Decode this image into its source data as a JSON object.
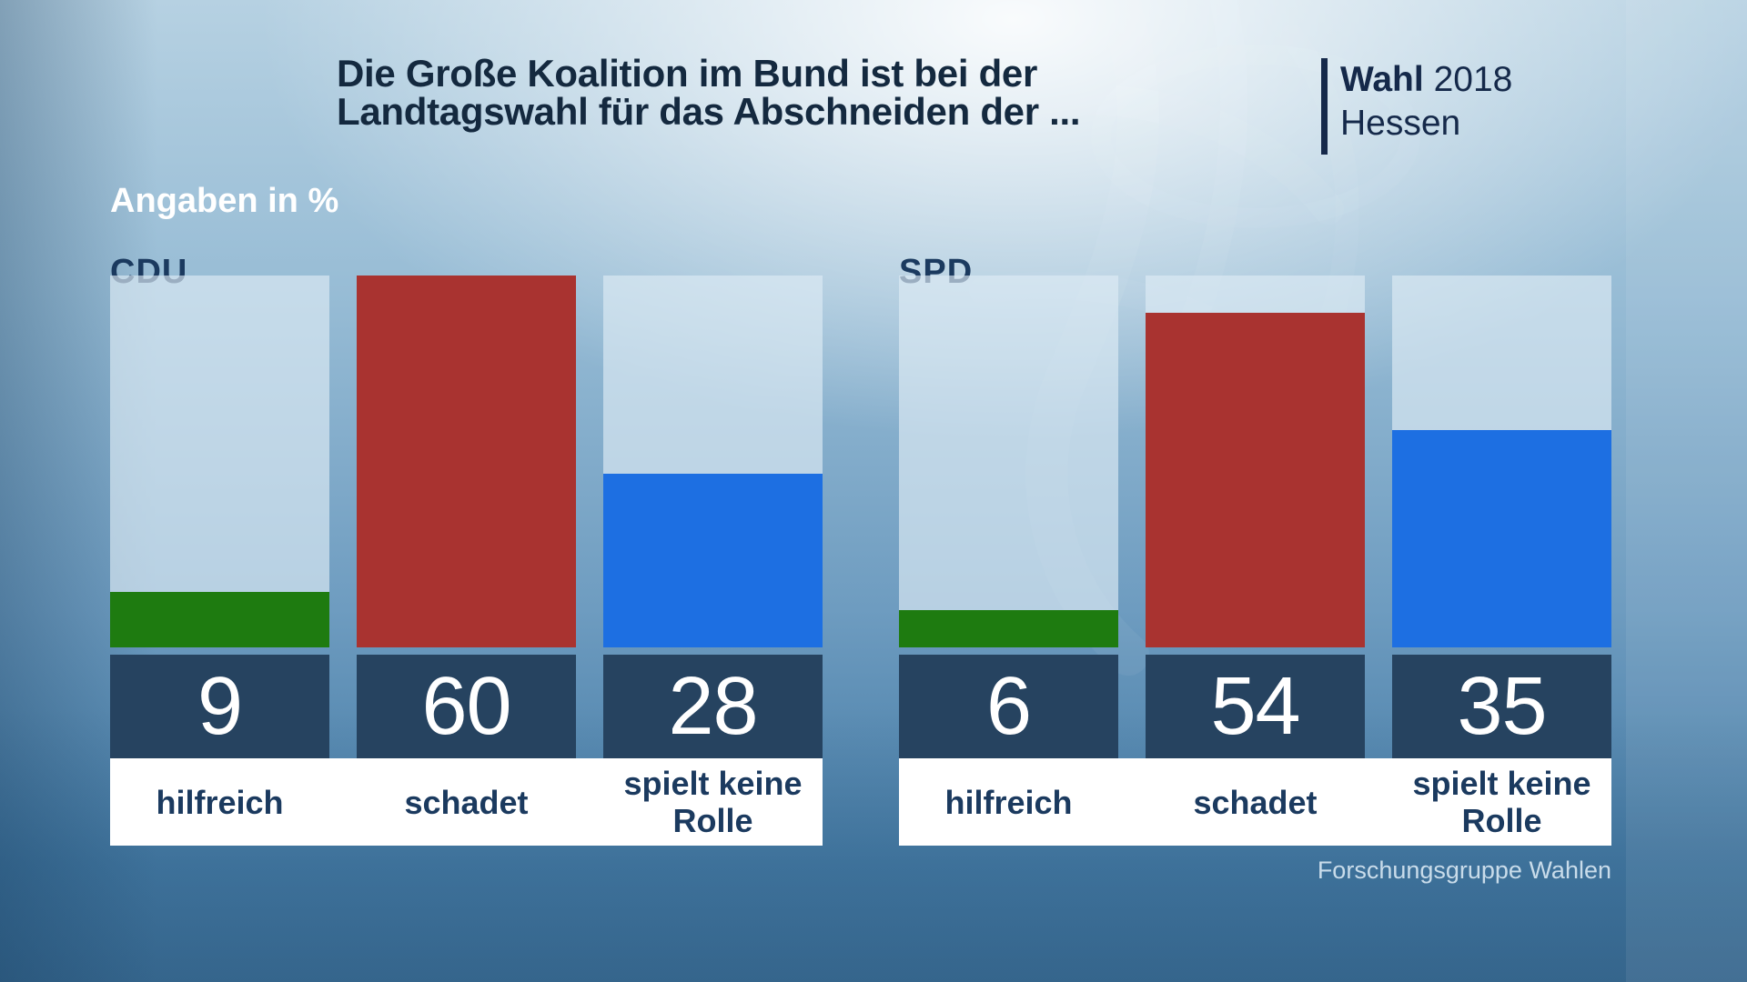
{
  "header": {
    "title_line1": "Die Große Koalition im Bund ist bei der",
    "title_line2": "Landtagswahl für das Abschneiden der ...",
    "brand": {
      "word": "Wahl",
      "year": "2018",
      "region": "Hessen"
    }
  },
  "meta": {
    "units_label": "Angaben in %",
    "source": "Forschungsgruppe Wahlen"
  },
  "chart_data": {
    "type": "bar",
    "title": "Die Große Koalition im Bund ist bei der Landtagswahl für das Abschneiden der ...",
    "subtitle": "Angaben in %",
    "categories": [
      "hilfreich",
      "schadet",
      "spielt keine Rolle"
    ],
    "series": [
      {
        "name": "CDU",
        "values": [
          9,
          60,
          28
        ]
      },
      {
        "name": "SPD",
        "values": [
          6,
          54,
          35
        ]
      }
    ],
    "bar_colors": [
      "#1e7b10",
      "#a93330",
      "#1d6fe2"
    ],
    "ylim": [
      0,
      60
    ],
    "grid": false,
    "legend_position": "none",
    "source": "Forschungsgruppe Wahlen"
  },
  "colors": {
    "bar_green": "#1e7b10",
    "bar_red": "#a93330",
    "bar_blue": "#1d6fe2",
    "value_band": "#264360",
    "track": "rgba(222,236,245,0.66)",
    "title_text": "#14293f",
    "label_text": "#1b3a5f",
    "brand_navy": "#15294a"
  }
}
